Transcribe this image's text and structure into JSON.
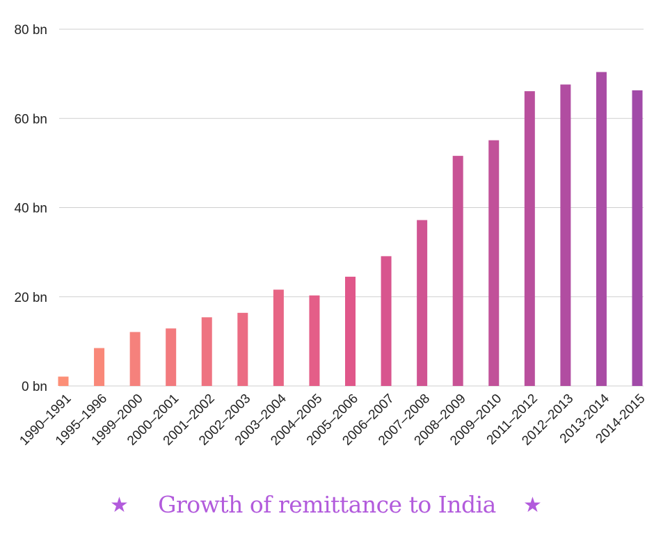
{
  "colors": {
    "title": "#b25bdc",
    "star": "#b25bdc",
    "gradient_start": "#fc8f77",
    "gradient_mid": "#e0578a",
    "gradient_end": "#a14aa8"
  },
  "title_decoration": {
    "left_icon": "star-icon",
    "right_icon": "star-icon",
    "glyph": "★"
  },
  "chart_data": {
    "type": "bar",
    "title": "Growth of remittance to India",
    "xlabel": "",
    "ylabel": "",
    "categories": [
      "1990–1991",
      "1995–1996",
      "1999–2000",
      "2000–2001",
      "2001–2002",
      "2002–2003",
      "2003–2004",
      "2004–2005",
      "2005–2006",
      "2006–2007",
      "2007–2008",
      "2008–2009",
      "2009–2010",
      "2011–2012",
      "2012–2013",
      "2013-2014",
      "2014-2015"
    ],
    "values": [
      2.1,
      8.5,
      12.1,
      12.9,
      15.4,
      16.4,
      21.6,
      20.3,
      24.5,
      29.1,
      37.2,
      51.6,
      55.1,
      66.1,
      67.6,
      70.4,
      66.3
    ],
    "ylim": [
      0,
      80
    ],
    "yticks": [
      0,
      20,
      40,
      60,
      80
    ],
    "ytick_labels": [
      "0 bn",
      "20 bn",
      "40 bn",
      "60 bn",
      "80 bn"
    ],
    "grid": true,
    "legend": "none"
  }
}
